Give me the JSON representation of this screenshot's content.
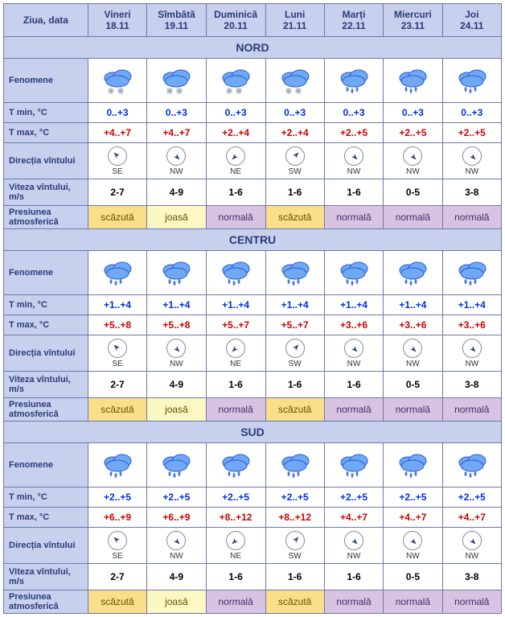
{
  "header_label": "Ziua, data",
  "days": [
    {
      "dow": "Vineri",
      "date": "18.11"
    },
    {
      "dow": "Sîmbătă",
      "date": "19.11"
    },
    {
      "dow": "Duminică",
      "date": "20.11"
    },
    {
      "dow": "Luni",
      "date": "21.11"
    },
    {
      "dow": "Marți",
      "date": "22.11"
    },
    {
      "dow": "Miercuri",
      "date": "23.11"
    },
    {
      "dow": "Joi",
      "date": "24.11"
    }
  ],
  "row_labels": {
    "fenomene": "Fenomene",
    "tmin": "T min, °C",
    "tmax": "T max, °C",
    "dir": "Direcția vîntului",
    "vel": "Viteza vîntului, m/s",
    "pres": "Presiunea atmosferică"
  },
  "pressure_classes": {
    "scăzută": "p-scazuta",
    "joasă": "p-joasa",
    "normală": "p-normala"
  },
  "wind_arrow_angle": {
    "SE": 315,
    "NW": 135,
    "NE": 225,
    "SW": 45
  },
  "icon_types": {
    "snow": "snow",
    "rain": "rain",
    "rain_light": "rain"
  },
  "sections": [
    {
      "title": "NORD",
      "fenomene": [
        "snow",
        "snow",
        "snow",
        "snow",
        "rain",
        "rain",
        "rain"
      ],
      "tmin": [
        "0..+3",
        "0..+3",
        "0..+3",
        "0..+3",
        "0..+3",
        "0..+3",
        "0..+3"
      ],
      "tmax": [
        "+4..+7",
        "+4..+7",
        "+2..+4",
        "+2..+4",
        "+2..+5",
        "+2..+5",
        "+2..+5"
      ],
      "dir": [
        "SE",
        "NW",
        "NE",
        "SW",
        "NW",
        "NW",
        "NW"
      ],
      "vel": [
        "2-7",
        "4-9",
        "1-6",
        "1-6",
        "1-6",
        "0-5",
        "3-8"
      ],
      "pres": [
        "scăzută",
        "joasă",
        "normală",
        "scăzută",
        "normală",
        "normală",
        "normală"
      ]
    },
    {
      "title": "CENTRU",
      "fenomene": [
        "rain",
        "rain",
        "rain",
        "rain",
        "rain",
        "rain",
        "rain"
      ],
      "tmin": [
        "+1..+4",
        "+1..+4",
        "+1..+4",
        "+1..+4",
        "+1..+4",
        "+1..+4",
        "+1..+4"
      ],
      "tmax": [
        "+5..+8",
        "+5..+8",
        "+5..+7",
        "+5..+7",
        "+3..+6",
        "+3..+6",
        "+3..+6"
      ],
      "dir": [
        "SE",
        "NW",
        "NE",
        "SW",
        "NW",
        "NW",
        "NW"
      ],
      "vel": [
        "2-7",
        "4-9",
        "1-6",
        "1-6",
        "1-6",
        "0-5",
        "3-8"
      ],
      "pres": [
        "scăzută",
        "joasă",
        "normală",
        "scăzută",
        "normală",
        "normală",
        "normală"
      ]
    },
    {
      "title": "SUD",
      "fenomene": [
        "rain",
        "rain",
        "rain",
        "rain",
        "rain",
        "rain",
        "rain"
      ],
      "tmin": [
        "+2..+5",
        "+2..+5",
        "+2..+5",
        "+2..+5",
        "+2..+5",
        "+2..+5",
        "+2..+5"
      ],
      "tmax": [
        "+6..+9",
        "+6..+9",
        "+8..+12",
        "+8..+12",
        "+4..+7",
        "+4..+7",
        "+4..+7"
      ],
      "dir": [
        "SE",
        "NW",
        "NE",
        "SW",
        "NW",
        "NW",
        "NW"
      ],
      "vel": [
        "2-7",
        "4-9",
        "1-6",
        "1-6",
        "1-6",
        "0-5",
        "3-8"
      ],
      "pres": [
        "scăzută",
        "joasă",
        "normală",
        "scăzută",
        "normală",
        "normală",
        "normală"
      ]
    }
  ],
  "colors": {
    "header_bg": "#c7d1ed",
    "border": "#6a7aa8",
    "tmin_text": "#0030e0",
    "tmax_text": "#d00000"
  }
}
